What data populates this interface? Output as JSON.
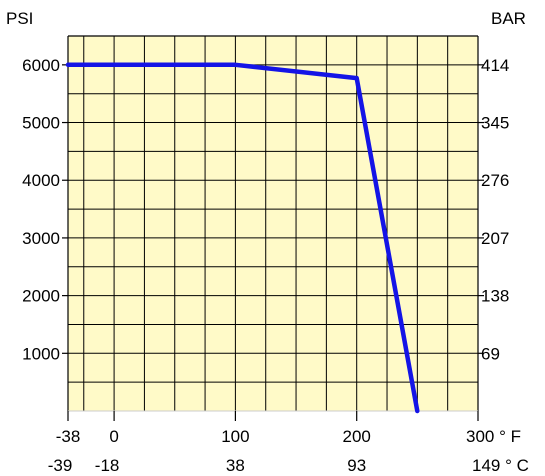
{
  "chart_data": {
    "type": "line",
    "title": "",
    "left_axis_unit": "PSI",
    "right_axis_unit": "BAR",
    "x_axis": {
      "unit": "°F",
      "lim": [
        -38,
        300
      ],
      "ticks": [
        {
          "value": -38,
          "label": "-38",
          "sub": "-39"
        },
        {
          "value": 0,
          "label": "0",
          "sub": "-18"
        },
        {
          "value": 100,
          "label": "100",
          "sub": "38"
        },
        {
          "value": 200,
          "label": "200",
          "sub": "93"
        },
        {
          "value": 300,
          "label": "300 ° F",
          "sub": "149 ° C"
        }
      ]
    },
    "y_axis": {
      "unit": "PSI",
      "lim": [
        0,
        6500
      ],
      "ticks": [
        1000,
        2000,
        3000,
        4000,
        5000,
        6000
      ]
    },
    "y2_axis": {
      "unit": "BAR",
      "ticks": [
        {
          "psi_value": 1000,
          "label": "69"
        },
        {
          "psi_value": 2000,
          "label": "138"
        },
        {
          "psi_value": 3000,
          "label": "207"
        },
        {
          "psi_value": 4000,
          "label": "276"
        },
        {
          "psi_value": 5000,
          "label": "345"
        },
        {
          "psi_value": 6000,
          "label": "414"
        }
      ]
    },
    "grid": true,
    "series": [
      {
        "color": "#1414e6",
        "points": [
          [
            -38,
            6000
          ],
          [
            100,
            6000
          ],
          [
            200,
            5770
          ],
          [
            250,
            0
          ]
        ]
      }
    ],
    "colors": {
      "plot_bg": "#fffac8",
      "grid": "#000000",
      "line": "#1414e6"
    }
  }
}
